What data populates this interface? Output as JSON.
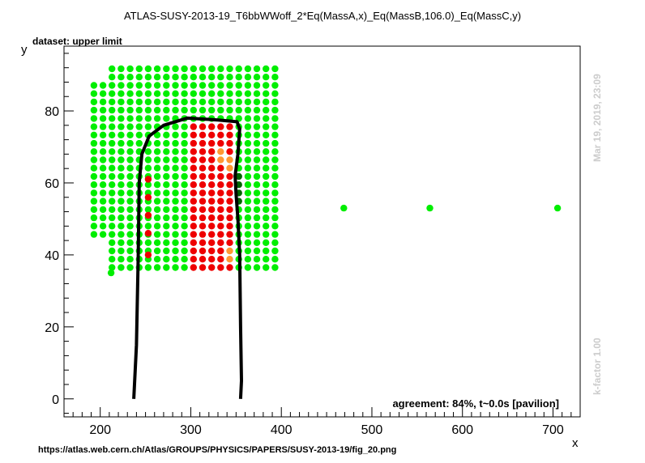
{
  "title": "ATLAS-SUSY-2013-19_T6bbWWoff_2*Eq(MassA,x)_Eq(MassB,106.0)_Eq(MassC,y)",
  "dataset_label": "dataset: upper limit",
  "xlabel": "x",
  "ylabel": "y",
  "timestamp": "Mar 19, 2019, 23:09",
  "kfactor": "k-factor 1.00",
  "agreement": "agreement: 84%, t~0.0s [pavilion]",
  "source_url": "https://atlas.web.cern.ch/Atlas/GROUPS/PHYSICS/PAPERS/SUSY-2013-19/fig_20.png",
  "chart_data": {
    "type": "scatter",
    "title": "ATLAS-SUSY-2013-19_T6bbWWoff_2*Eq(MassA,x)_Eq(MassB,106.0)_Eq(MassC,y)",
    "xlabel": "x",
    "ylabel": "y",
    "xlim": [
      160,
      730
    ],
    "ylim": [
      -5,
      98
    ],
    "x_ticks": [
      200,
      300,
      400,
      500,
      600,
      700
    ],
    "y_ticks": [
      0,
      20,
      40,
      60,
      80
    ],
    "grid": false,
    "colors": {
      "allowed": "#00ee00",
      "excluded": "#ee0000",
      "orange": "#ff9933",
      "dark_green": "#006600",
      "contour": "#000000"
    },
    "grid_points": {
      "x_min": 193,
      "x_max": 397,
      "x_step": 10,
      "y_min": 36.5,
      "y_max": 93,
      "y_step": 2.3
    },
    "excluded_region": {
      "x_min": 298,
      "x_max": 345,
      "y_min": 36.5,
      "y_max": 76
    },
    "excluded_column": {
      "x": 253,
      "y_values": [
        40,
        46,
        51,
        56,
        61
      ]
    },
    "extra_points": [
      {
        "x": 212,
        "y": 35
      },
      {
        "x": 469,
        "y": 53
      },
      {
        "x": 564,
        "y": 53
      },
      {
        "x": 705,
        "y": 53
      }
    ],
    "contour": [
      [
        237,
        0
      ],
      [
        240,
        15
      ],
      [
        242,
        40
      ],
      [
        243,
        60
      ],
      [
        246,
        68
      ],
      [
        254,
        73
      ],
      [
        270,
        76
      ],
      [
        296,
        78
      ],
      [
        330,
        77.5
      ],
      [
        351,
        77
      ],
      [
        354,
        75
      ],
      [
        352,
        68
      ],
      [
        349,
        62
      ],
      [
        350,
        57
      ],
      [
        352,
        50
      ],
      [
        354,
        40
      ],
      [
        355,
        20
      ],
      [
        356,
        5
      ],
      [
        355,
        0
      ]
    ]
  }
}
